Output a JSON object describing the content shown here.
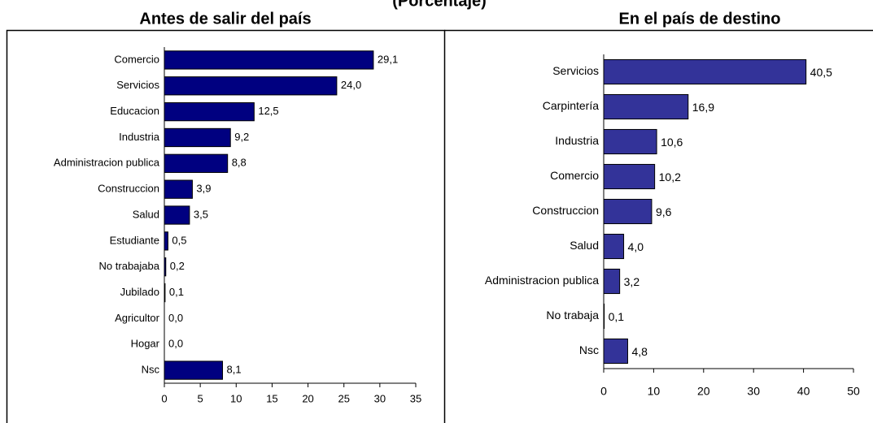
{
  "title": "(Porcentaje)",
  "chart_data": [
    {
      "type": "bar",
      "title": "Antes de salir del país",
      "categories": [
        "Comercio",
        "Servicios",
        "Educacion",
        "Industria",
        "Administracion publica",
        "Construccion",
        "Salud",
        "Estudiante",
        "No trabajaba",
        "Jubilado",
        "Agricultor",
        "Hogar",
        "Nsc"
      ],
      "values": [
        29.1,
        24.0,
        12.5,
        9.2,
        8.8,
        3.9,
        3.5,
        0.5,
        0.2,
        0.1,
        0.0,
        0.0,
        8.1
      ],
      "value_labels": [
        "29,1",
        "24,0",
        "12,5",
        "9,2",
        "8,8",
        "3,9",
        "3,5",
        "0,5",
        "0,2",
        "0,1",
        "0,0",
        "0,0",
        "8,1"
      ],
      "color": "#000080",
      "xlim": [
        0,
        35
      ],
      "xticks": [
        0,
        5,
        10,
        15,
        20,
        25,
        30,
        35
      ]
    },
    {
      "type": "bar",
      "title": "En el país de destino",
      "categories": [
        "Servicios",
        "Carpintería",
        "Industria",
        "Comercio",
        "Construccion",
        "Salud",
        "Administracion publica",
        "No trabaja",
        "Nsc"
      ],
      "values": [
        40.5,
        16.9,
        10.6,
        10.2,
        9.6,
        4.0,
        3.2,
        0.1,
        4.8
      ],
      "value_labels": [
        "40,5",
        "16,9",
        "10,6",
        "10,2",
        "9,6",
        "4,0",
        "3,2",
        "0,1",
        "4,8"
      ],
      "color": "#333399",
      "xlim": [
        0,
        50
      ],
      "xticks": [
        0,
        10,
        20,
        30,
        40,
        50
      ]
    }
  ]
}
